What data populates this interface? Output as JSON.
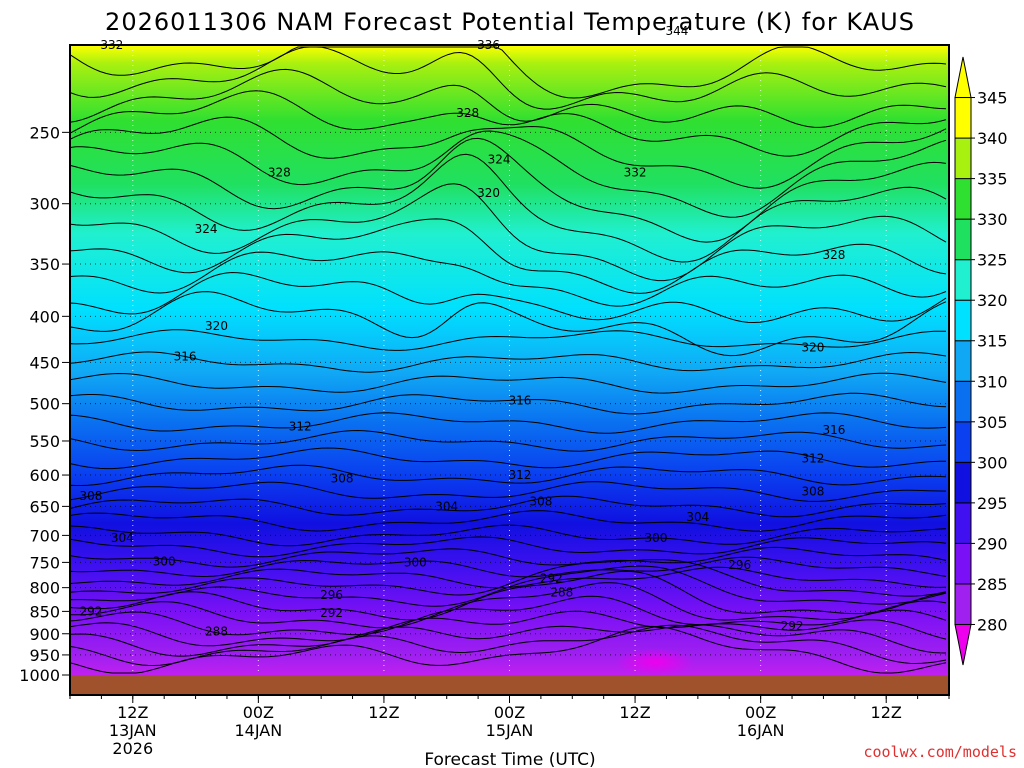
{
  "chart_data": {
    "type": "heatmap",
    "title": "2026011306 NAM Forecast Potential Temperature (K) for KAUS",
    "xlabel": "Forecast Time (UTC)",
    "credit": "coolwx.com/models",
    "y_ticks": [
      "250",
      "300",
      "350",
      "400",
      "450",
      "500",
      "550",
      "600",
      "650",
      "700",
      "750",
      "800",
      "850",
      "900",
      "950",
      "1000"
    ],
    "x_ticks": [
      {
        "hour": 6,
        "lines": [
          "12Z",
          "13JAN",
          "2026"
        ]
      },
      {
        "hour": 18,
        "lines": [
          "00Z",
          "14JAN"
        ]
      },
      {
        "hour": 30,
        "lines": [
          "12Z"
        ]
      },
      {
        "hour": 42,
        "lines": [
          "00Z",
          "15JAN"
        ]
      },
      {
        "hour": 54,
        "lines": [
          "12Z"
        ]
      },
      {
        "hour": 66,
        "lines": [
          "00Z",
          "16JAN"
        ]
      },
      {
        "hour": 78,
        "lines": [
          "12Z"
        ]
      }
    ],
    "xlim": [
      0,
      84
    ],
    "colorbar": {
      "levels": [
        280,
        285,
        290,
        295,
        300,
        305,
        310,
        315,
        320,
        325,
        330,
        335,
        340,
        345
      ],
      "colors": [
        "#ee00ee",
        "#a020f0",
        "#7a10f5",
        "#4010f0",
        "#1010e0",
        "#0a40f0",
        "#0a70f0",
        "#10a8f5",
        "#00e0ff",
        "#20f0d0",
        "#20e060",
        "#30e030",
        "#a8f010",
        "#ffff00"
      ]
    },
    "contour_labels": [
      {
        "value": "332",
        "hour": 4,
        "pressure": 200
      },
      {
        "value": "336",
        "hour": 40,
        "pressure": 200
      },
      {
        "value": "344",
        "hour": 58,
        "pressure": 193
      },
      {
        "value": "328",
        "hour": 38,
        "pressure": 238
      },
      {
        "value": "324",
        "hour": 41,
        "pressure": 268
      },
      {
        "value": "328",
        "hour": 20,
        "pressure": 277
      },
      {
        "value": "332",
        "hour": 54,
        "pressure": 277
      },
      {
        "value": "320",
        "hour": 40,
        "pressure": 292
      },
      {
        "value": "324",
        "hour": 13,
        "pressure": 320
      },
      {
        "value": "328",
        "hour": 73,
        "pressure": 342
      },
      {
        "value": "320",
        "hour": 14,
        "pressure": 410
      },
      {
        "value": "320",
        "hour": 71,
        "pressure": 433
      },
      {
        "value": "316",
        "hour": 11,
        "pressure": 443
      },
      {
        "value": "316",
        "hour": 43,
        "pressure": 496
      },
      {
        "value": "312",
        "hour": 22,
        "pressure": 530
      },
      {
        "value": "316",
        "hour": 73,
        "pressure": 535
      },
      {
        "value": "312",
        "hour": 71,
        "pressure": 575
      },
      {
        "value": "312",
        "hour": 43,
        "pressure": 600
      },
      {
        "value": "308",
        "hour": 26,
        "pressure": 605
      },
      {
        "value": "308",
        "hour": 2,
        "pressure": 633
      },
      {
        "value": "308",
        "hour": 45,
        "pressure": 642
      },
      {
        "value": "308",
        "hour": 71,
        "pressure": 626
      },
      {
        "value": "304",
        "hour": 36,
        "pressure": 650
      },
      {
        "value": "304",
        "hour": 60,
        "pressure": 668
      },
      {
        "value": "304",
        "hour": 5,
        "pressure": 705
      },
      {
        "value": "300",
        "hour": 56,
        "pressure": 705
      },
      {
        "value": "300",
        "hour": 9,
        "pressure": 748
      },
      {
        "value": "300",
        "hour": 33,
        "pressure": 750
      },
      {
        "value": "296",
        "hour": 64,
        "pressure": 755
      },
      {
        "value": "292",
        "hour": 46,
        "pressure": 782
      },
      {
        "value": "288",
        "hour": 47,
        "pressure": 810
      },
      {
        "value": "296",
        "hour": 25,
        "pressure": 815
      },
      {
        "value": "292",
        "hour": 2,
        "pressure": 850
      },
      {
        "value": "292",
        "hour": 25,
        "pressure": 853
      },
      {
        "value": "292",
        "hour": 69,
        "pressure": 882
      },
      {
        "value": "288",
        "hour": 14,
        "pressure": 895
      }
    ]
  }
}
